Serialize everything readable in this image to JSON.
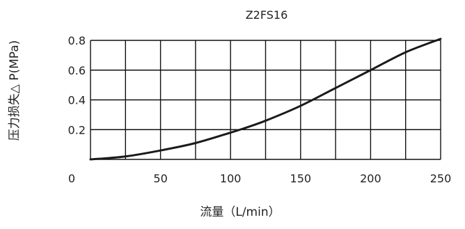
{
  "chart_data": {
    "type": "line",
    "title": "Z2FS16",
    "xlabel": "流量（L/min）",
    "ylabel": "压力损失△ P(MPa)",
    "xlim": [
      0,
      250
    ],
    "ylim": [
      0,
      0.8
    ],
    "x_ticks": [
      0,
      50,
      100,
      150,
      200,
      250
    ],
    "x_tick_labels": [
      "0",
      "50",
      "100",
      "150",
      "200",
      "250"
    ],
    "y_ticks": [
      0.2,
      0.4,
      0.6,
      0.8
    ],
    "y_tick_labels": [
      "0.2",
      "0.4",
      "0.6",
      "0.8"
    ],
    "x_gridlines": [
      0,
      25,
      50,
      75,
      100,
      125,
      150,
      175,
      200,
      225,
      250
    ],
    "y_gridlines": [
      0,
      0.2,
      0.4,
      0.6,
      0.8
    ],
    "grid": true,
    "series": [
      {
        "x": [
          0,
          25,
          50,
          75,
          100,
          110,
          125,
          150,
          175,
          200,
          225,
          250
        ],
        "y": [
          0.0,
          0.02,
          0.06,
          0.11,
          0.18,
          0.21,
          0.26,
          0.36,
          0.48,
          0.6,
          0.72,
          0.81
        ],
        "color": "#1a1a1a"
      }
    ]
  }
}
